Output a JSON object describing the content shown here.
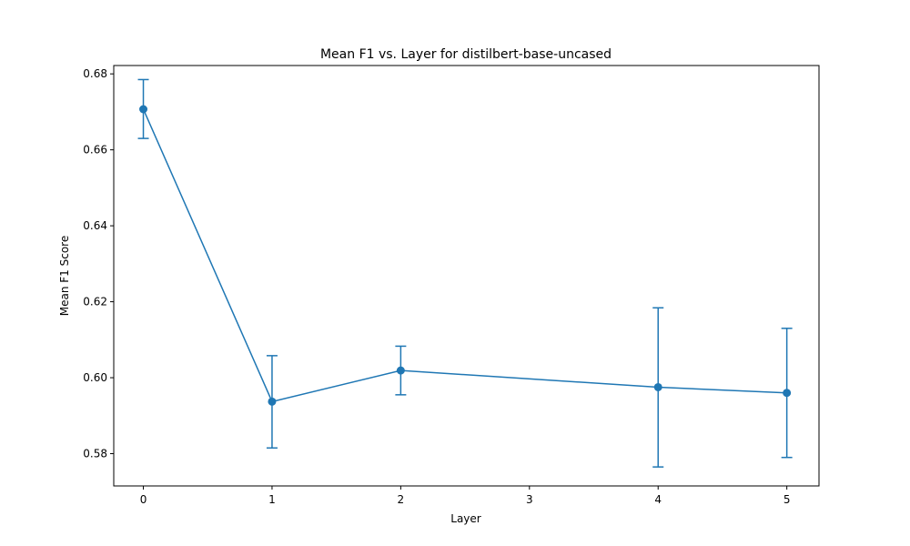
{
  "chart_data": {
    "type": "line",
    "title": "Mean F1 vs. Layer for distilbert-base-uncased",
    "xlabel": "Layer",
    "ylabel": "Mean F1 Score",
    "xlim": [
      -0.23,
      5.25
    ],
    "ylim": [
      0.5715,
      0.6822
    ],
    "x_ticks": [
      0,
      1,
      2,
      3,
      4,
      5
    ],
    "y_ticks": [
      0.58,
      0.6,
      0.62,
      0.64,
      0.66,
      0.68
    ],
    "y_tick_labels": [
      "0.58",
      "0.60",
      "0.62",
      "0.64",
      "0.66",
      "0.68"
    ],
    "grid": false,
    "series": [
      {
        "x": [
          0,
          1,
          2,
          4,
          5
        ],
        "y": [
          0.6707,
          0.5937,
          0.6019,
          0.5975,
          0.596
        ],
        "err_low": [
          0.663,
          0.5815,
          0.5955,
          0.5765,
          0.579
        ],
        "err_high": [
          0.6785,
          0.6058,
          0.6083,
          0.6184,
          0.613
        ],
        "color": "#1f77b4"
      }
    ]
  }
}
